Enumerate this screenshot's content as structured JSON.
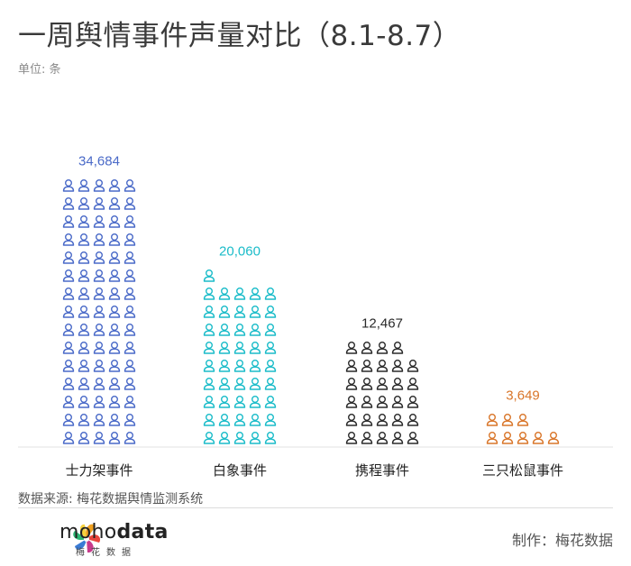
{
  "title": "一周舆情事件声量对比（8.1-8.7）",
  "unit": "单位: 条",
  "source": "数据来源: 梅花数据舆情监测系统",
  "brand": {
    "prefix": "moho",
    "suffix": "data",
    "sub": "梅花数据"
  },
  "credit": "制作：梅花数据",
  "chart_data": {
    "type": "bar",
    "categories": [
      "士力架事件",
      "白象事件",
      "携程事件",
      "三只松鼠事件"
    ],
    "values": [
      34684,
      20060,
      12467,
      3649
    ],
    "value_labels": [
      "34,684",
      "20,060",
      "12,467",
      "3,649"
    ],
    "icon_counts": [
      75,
      46,
      29,
      8
    ],
    "colors": [
      "#4a6ac8",
      "#1bbcc9",
      "#2a2a2a",
      "#d9762a"
    ],
    "icon": "person-icon",
    "icons_per_row": 5,
    "grid": false
  }
}
